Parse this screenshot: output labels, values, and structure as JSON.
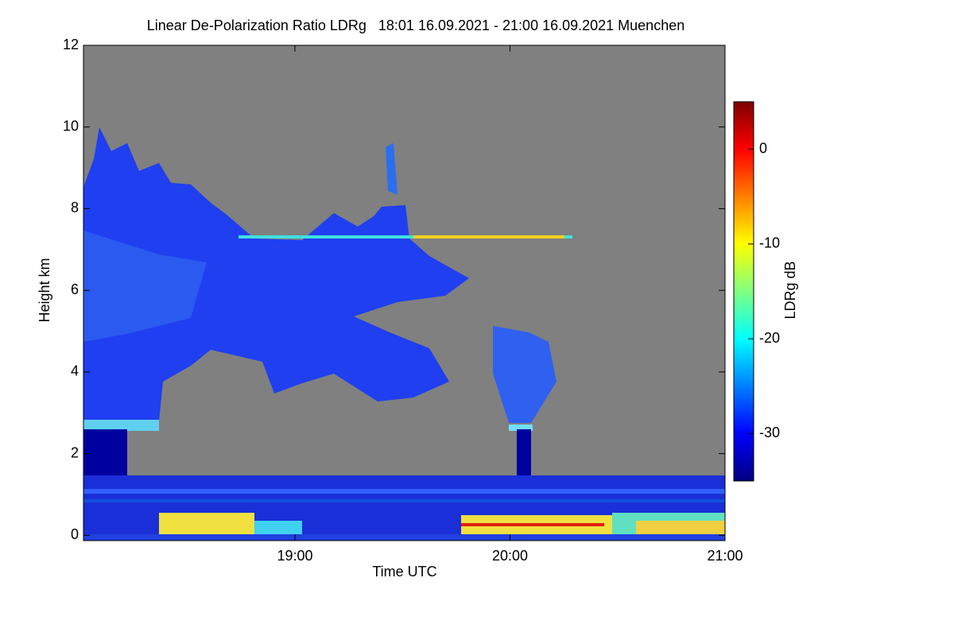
{
  "chart_data": {
    "type": "heatmap",
    "title": "Linear De-Polarization Ratio LDRg   18:01 16.09.2021 - 21:00 16.09.2021 Muenchen",
    "x_label": "Time UTC",
    "y_label": "Height km",
    "xlim": [
      18.0167,
      21.0
    ],
    "xticks": [
      {
        "value": 19,
        "label": "19:00"
      },
      {
        "value": 20,
        "label": "20:00"
      },
      {
        "value": 21,
        "label": "21:00"
      }
    ],
    "ylim": [
      -0.13,
      12
    ],
    "yticks": [
      0,
      2,
      4,
      6,
      8,
      10,
      12
    ],
    "colorbar": {
      "label": "LDRg dB",
      "zlim": [
        -35,
        5
      ],
      "ticks": [
        0,
        -10,
        -20,
        -30
      ],
      "colormap": [
        "#00007f",
        "#0000ff",
        "#007fff",
        "#00ffff",
        "#7fff7f",
        "#ffff00",
        "#ff7f00",
        "#ff0000",
        "#7f0000"
      ]
    },
    "background_color": "#808080"
  }
}
